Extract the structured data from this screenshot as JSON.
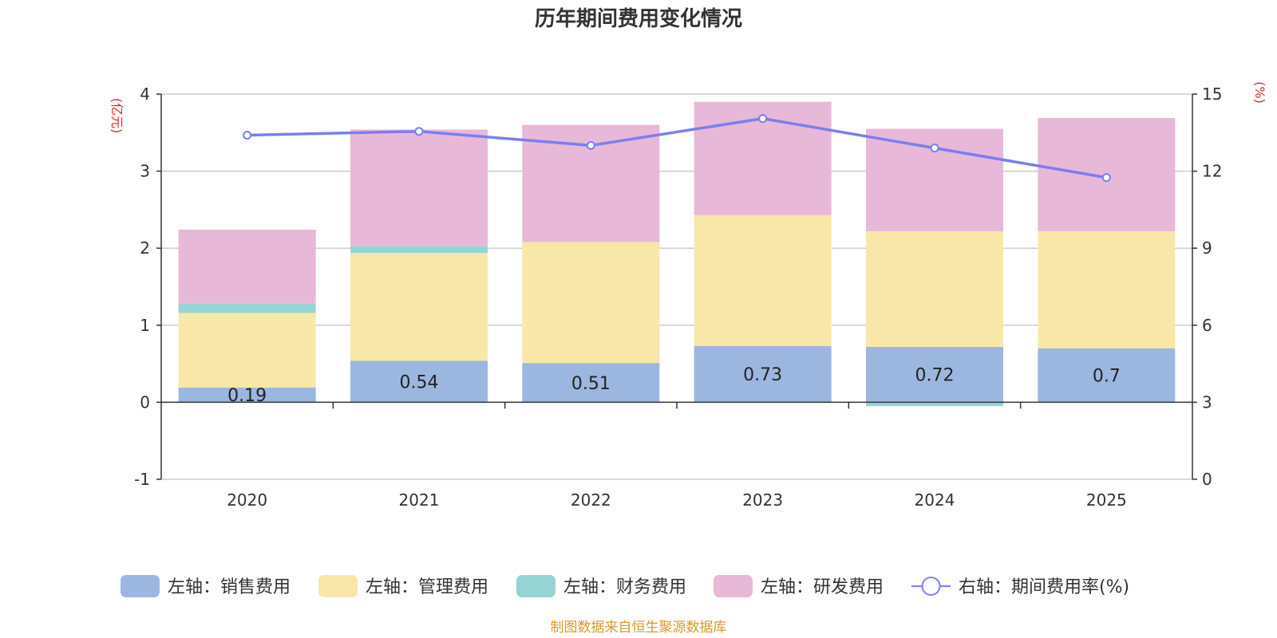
{
  "chart_data": {
    "type": "bar",
    "stacked": true,
    "title": "历年期间费用变化情况",
    "categories": [
      "2020",
      "2021",
      "2022",
      "2023",
      "2024",
      "2025"
    ],
    "left_axis": {
      "unit": "(亿元)",
      "ylim": [
        -1,
        4
      ],
      "ticks": [
        -1,
        0,
        1,
        2,
        3,
        4
      ],
      "tick_labels": [
        "-1",
        "0",
        "1",
        "2",
        "3",
        "4"
      ]
    },
    "right_axis": {
      "unit": "(%)",
      "ylim": [
        0,
        15
      ],
      "ticks": [
        0,
        3,
        6,
        9,
        12,
        15
      ],
      "tick_labels": [
        "0",
        "3",
        "6",
        "9",
        "12",
        "15"
      ]
    },
    "series": [
      {
        "name": "左轴：销售费用",
        "axis": "left",
        "kind": "bar",
        "color": "#9bb7e0",
        "values": [
          0.19,
          0.54,
          0.51,
          0.73,
          0.72,
          0.7
        ],
        "labels": [
          "0.19",
          "0.54",
          "0.51",
          "0.73",
          "0.72",
          "0.7"
        ]
      },
      {
        "name": "左轴：管理费用",
        "axis": "left",
        "kind": "bar",
        "color": "#f8e7a8",
        "values": [
          0.97,
          1.4,
          1.57,
          1.7,
          1.5,
          1.52
        ]
      },
      {
        "name": "左轴：财务费用",
        "axis": "left",
        "kind": "bar",
        "color": "#96d4d4",
        "values": [
          0.12,
          0.09,
          0.0,
          0.0,
          -0.05,
          0.0
        ]
      },
      {
        "name": "左轴：研发费用",
        "axis": "left",
        "kind": "bar",
        "color": "#e8b8d8",
        "values": [
          0.96,
          1.51,
          1.52,
          1.47,
          1.33,
          1.47
        ]
      },
      {
        "name": "右轴：期间费用率(%)",
        "axis": "right",
        "kind": "line",
        "color": "#7b7ef0",
        "values": [
          13.4,
          13.55,
          13.0,
          14.05,
          12.9,
          11.75
        ]
      }
    ],
    "source": "制图数据来自恒生聚源数据库"
  }
}
